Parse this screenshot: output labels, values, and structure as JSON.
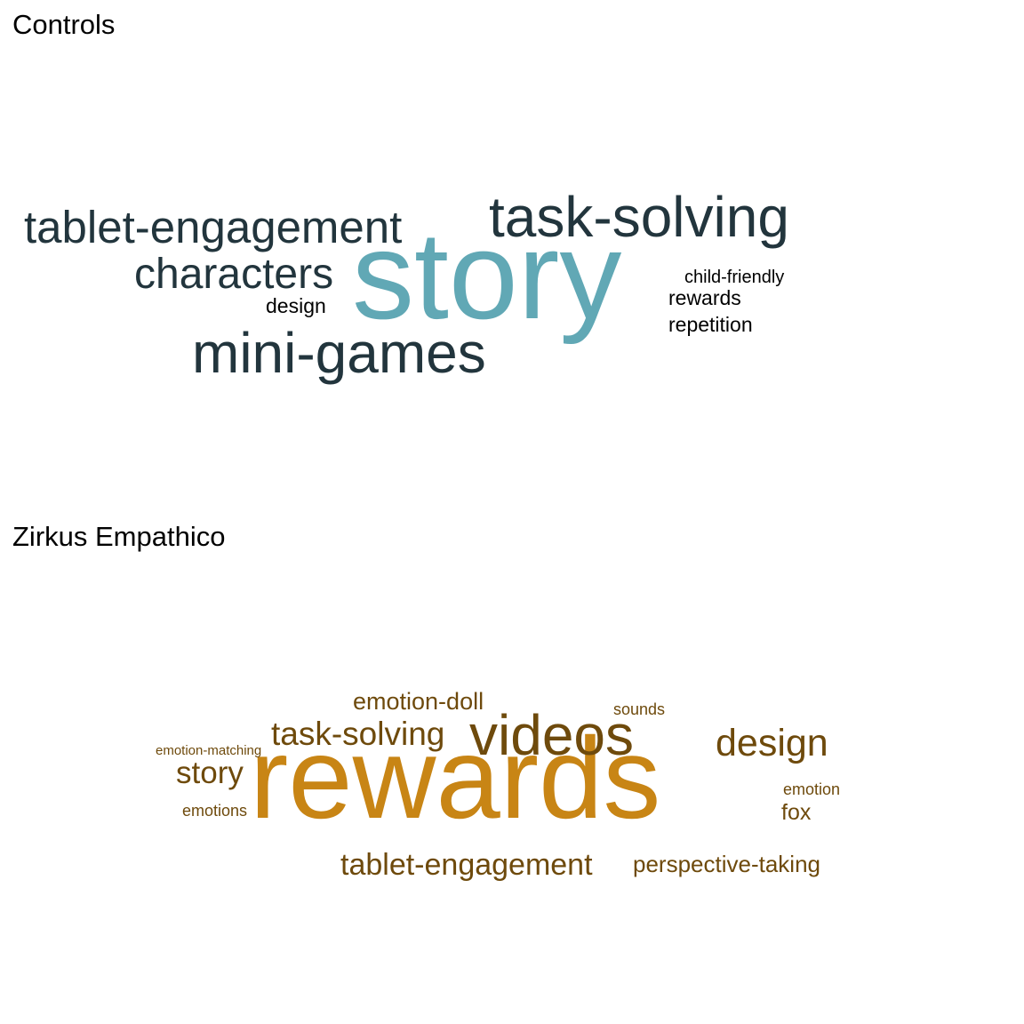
{
  "chart_data": [
    {
      "type": "wordcloud",
      "title": "Controls",
      "words": [
        {
          "text": "story",
          "weight": 10,
          "color": "#61a8b5"
        },
        {
          "text": "task-solving",
          "weight": 5,
          "color": "#22353d"
        },
        {
          "text": "tablet-engagement",
          "weight": 4,
          "color": "#22353d"
        },
        {
          "text": "mini-games",
          "weight": 5,
          "color": "#22353d"
        },
        {
          "text": "characters",
          "weight": 4,
          "color": "#22353d"
        },
        {
          "text": "design",
          "weight": 2,
          "color": "#000000"
        },
        {
          "text": "child-friendly",
          "weight": 2,
          "color": "#000000"
        },
        {
          "text": "rewards",
          "weight": 2,
          "color": "#000000"
        },
        {
          "text": "repetition",
          "weight": 2,
          "color": "#000000"
        }
      ]
    },
    {
      "type": "wordcloud",
      "title": "Zirkus Empathico",
      "words": [
        {
          "text": "rewards",
          "weight": 10,
          "color": "#c88515"
        },
        {
          "text": "videos",
          "weight": 5,
          "color": "#6e4a0c"
        },
        {
          "text": "design",
          "weight": 4,
          "color": "#6e4a0c"
        },
        {
          "text": "task-solving",
          "weight": 3,
          "color": "#6e4a0c"
        },
        {
          "text": "emotion-doll",
          "weight": 2,
          "color": "#6e4a0c"
        },
        {
          "text": "story",
          "weight": 3,
          "color": "#6e4a0c"
        },
        {
          "text": "tablet-engagement",
          "weight": 3,
          "color": "#6e4a0c"
        },
        {
          "text": "perspective-taking",
          "weight": 2,
          "color": "#6e4a0c"
        },
        {
          "text": "sounds",
          "weight": 1,
          "color": "#6e4a0c"
        },
        {
          "text": "emotion-matching",
          "weight": 1,
          "color": "#6e4a0c"
        },
        {
          "text": "emotions",
          "weight": 1,
          "color": "#6e4a0c"
        },
        {
          "text": "emotion",
          "weight": 1,
          "color": "#6e4a0c"
        },
        {
          "text": "fox",
          "weight": 2,
          "color": "#6e4a0c"
        }
      ]
    }
  ]
}
